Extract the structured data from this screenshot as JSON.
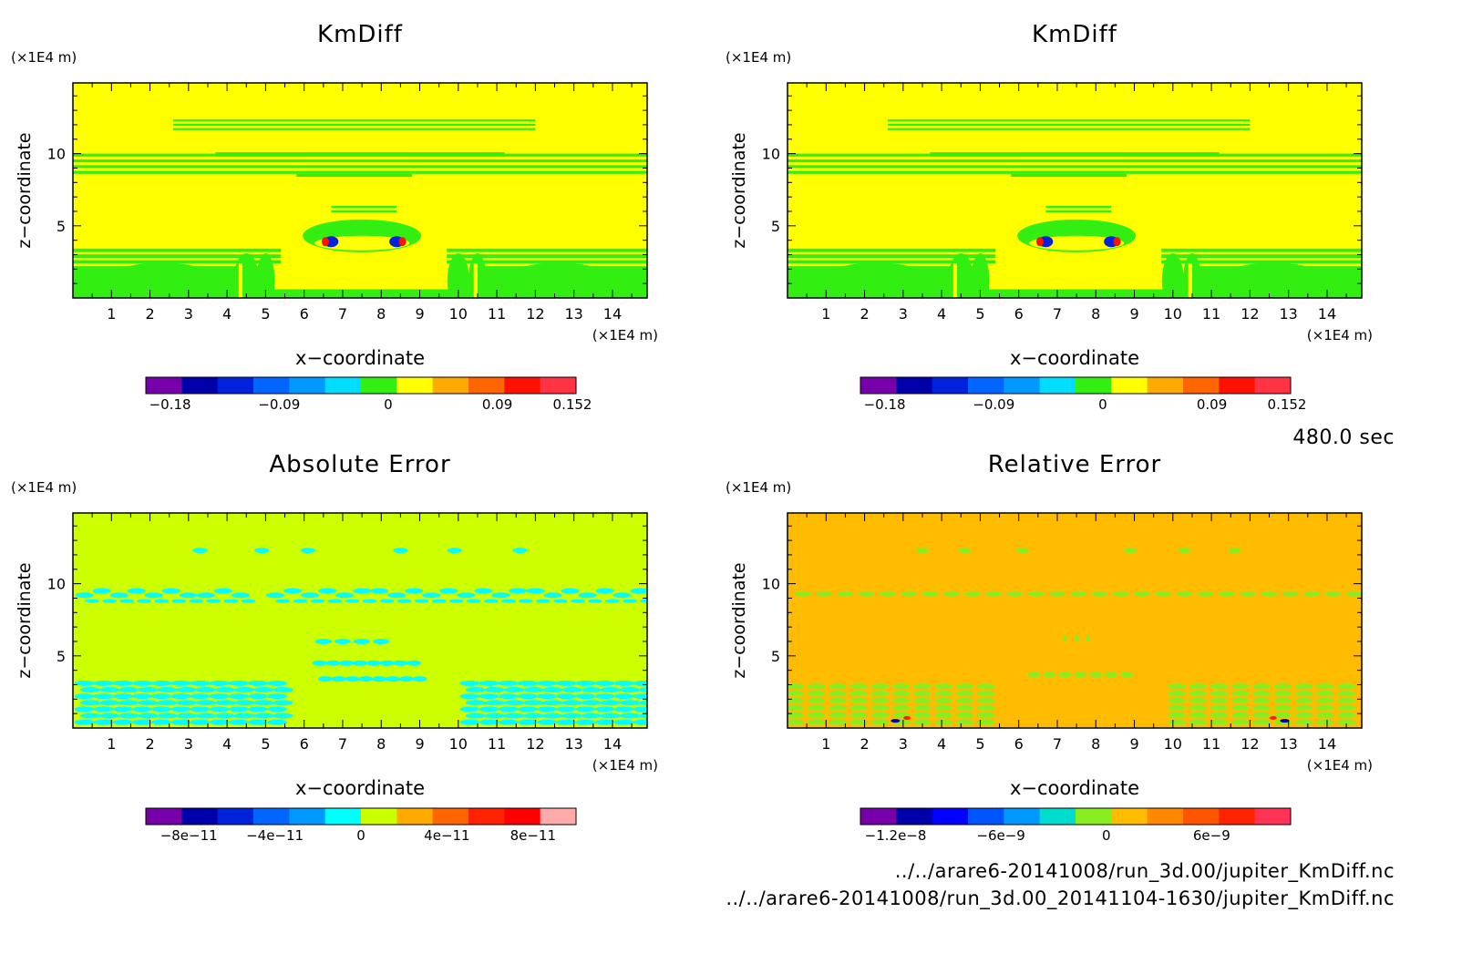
{
  "time_label": "480.0 sec",
  "files": [
    "../../arare6-20141008/run_3d.00/jupiter_KmDiff.nc",
    "../../arare6-20141008/run_3d.00_20141104-1630/jupiter_KmDiff.nc"
  ],
  "chart_data": [
    {
      "type": "heatmap",
      "title": "KmDiff",
      "xlabel": "x−coordinate",
      "ylabel": "z−coordinate",
      "x_unit": "(×1E4 m)",
      "y_unit": "(×1E4 m)",
      "xlim": [
        0,
        14.9
      ],
      "ylim": [
        0,
        14.9
      ],
      "xticks": [
        1,
        2,
        3,
        4,
        5,
        6,
        7,
        8,
        9,
        10,
        11,
        12,
        13,
        14
      ],
      "yticks": [
        5,
        10
      ],
      "background": "#ffff00",
      "colorbar": {
        "colors": [
          "#7700aa",
          "#0000aa",
          "#0022dd",
          "#0066ff",
          "#0099ff",
          "#00ddff",
          "#33ee11",
          "#ffff00",
          "#ffaa00",
          "#ff6600",
          "#ff1100",
          "#ff3344"
        ],
        "ticks": [
          {
            "v": -0.18,
            "label": "−0.18"
          },
          {
            "v": -0.09,
            "label": "−0.09"
          },
          {
            "v": 0,
            "label": "0"
          },
          {
            "v": 0.09,
            "label": "0.09"
          },
          {
            "v": 0.152,
            "label": "0.152"
          }
        ],
        "min": -0.2,
        "max": 0.155
      },
      "pattern": "field"
    },
    {
      "type": "heatmap",
      "title": "KmDiff",
      "xlabel": "x−coordinate",
      "ylabel": "z−coordinate",
      "x_unit": "(×1E4 m)",
      "y_unit": "(×1E4 m)",
      "xlim": [
        0,
        14.9
      ],
      "ylim": [
        0,
        14.9
      ],
      "xticks": [
        1,
        2,
        3,
        4,
        5,
        6,
        7,
        8,
        9,
        10,
        11,
        12,
        13,
        14
      ],
      "yticks": [
        5,
        10
      ],
      "background": "#ffff00",
      "colorbar": {
        "colors": [
          "#7700aa",
          "#0000aa",
          "#0022dd",
          "#0066ff",
          "#0099ff",
          "#00ddff",
          "#33ee11",
          "#ffff00",
          "#ffaa00",
          "#ff6600",
          "#ff1100",
          "#ff3344"
        ],
        "ticks": [
          {
            "v": -0.18,
            "label": "−0.18"
          },
          {
            "v": -0.09,
            "label": "−0.09"
          },
          {
            "v": 0,
            "label": "0"
          },
          {
            "v": 0.09,
            "label": "0.09"
          },
          {
            "v": 0.152,
            "label": "0.152"
          }
        ],
        "min": -0.2,
        "max": 0.155
      },
      "pattern": "field"
    },
    {
      "type": "heatmap",
      "title": "Absolute Error",
      "xlabel": "x−coordinate",
      "ylabel": "z−coordinate",
      "x_unit": "(×1E4 m)",
      "y_unit": "(×1E4 m)",
      "xlim": [
        0,
        14.9
      ],
      "ylim": [
        0,
        14.9
      ],
      "xticks": [
        1,
        2,
        3,
        4,
        5,
        6,
        7,
        8,
        9,
        10,
        11,
        12,
        13,
        14
      ],
      "yticks": [
        5,
        10
      ],
      "background": "#ccff00",
      "colorbar": {
        "colors": [
          "#7700aa",
          "#0000aa",
          "#0022dd",
          "#0066ff",
          "#0099ff",
          "#00ffff",
          "#ccff00",
          "#ffaa00",
          "#ff6600",
          "#ff2200",
          "#ff0000",
          "#ffaaaa"
        ],
        "ticks": [
          {
            "v": -8e-11,
            "label": "−8e−11"
          },
          {
            "v": -4e-11,
            "label": "−4e−11"
          },
          {
            "v": 0,
            "label": "0"
          },
          {
            "v": 4e-11,
            "label": "4e−11"
          },
          {
            "v": 8e-11,
            "label": "8e−11"
          }
        ],
        "min": -1e-10,
        "max": 1e-10
      },
      "pattern": "error_abs"
    },
    {
      "type": "heatmap",
      "title": "Relative Error",
      "xlabel": "x−coordinate",
      "ylabel": "z−coordinate",
      "x_unit": "(×1E4 m)",
      "y_unit": "(×1E4 m)",
      "xlim": [
        0,
        14.9
      ],
      "ylim": [
        0,
        14.9
      ],
      "xticks": [
        1,
        2,
        3,
        4,
        5,
        6,
        7,
        8,
        9,
        10,
        11,
        12,
        13,
        14
      ],
      "yticks": [
        5,
        10
      ],
      "background": "#ffbb00",
      "colorbar": {
        "colors": [
          "#7700aa",
          "#0000aa",
          "#0000ff",
          "#0055ff",
          "#0099ff",
          "#00ddcc",
          "#88ee22",
          "#ffbb00",
          "#ff8800",
          "#ff5500",
          "#ff2200",
          "#ff3355"
        ],
        "ticks": [
          {
            "v": -1.2e-08,
            "label": "−1.2e−8"
          },
          {
            "v": -6e-09,
            "label": "−6e−9"
          },
          {
            "v": 0,
            "label": "0"
          },
          {
            "v": 6e-09,
            "label": "6e−9"
          }
        ],
        "min": -1.4e-08,
        "max": 1.05e-08
      },
      "pattern": "error_rel"
    }
  ]
}
